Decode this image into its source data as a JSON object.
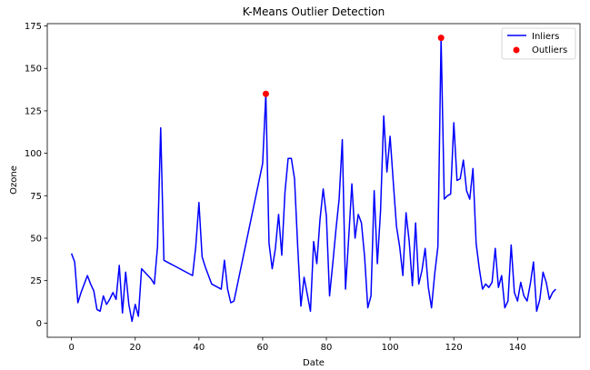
{
  "chart_data": {
    "type": "line",
    "title": "K-Means Outlier Detection",
    "xlabel": "Date",
    "ylabel": "Ozone",
    "xlim": [
      -7.6,
      159.6
    ],
    "ylim": [
      -8.35,
      176.35
    ],
    "xticks": [
      0,
      20,
      40,
      60,
      80,
      100,
      120,
      140
    ],
    "yticks": [
      0,
      25,
      50,
      75,
      100,
      125,
      150,
      175
    ],
    "grid": false,
    "legend_position": "upper right",
    "series": [
      {
        "name": "Inliers",
        "kind": "line",
        "color": "#0000ff",
        "x": [
          0,
          1,
          2,
          3,
          4,
          5,
          6,
          7,
          8,
          9,
          10,
          11,
          12,
          13,
          14,
          15,
          16,
          17,
          18,
          19,
          20,
          21,
          22,
          23,
          24,
          25,
          26,
          27,
          28,
          29,
          30,
          31,
          32,
          33,
          34,
          35,
          36,
          37,
          38,
          39,
          40,
          41,
          42,
          43,
          44,
          45,
          46,
          47,
          48,
          49,
          50,
          51,
          52,
          53,
          54,
          55,
          56,
          57,
          58,
          59,
          60,
          61,
          62,
          63,
          64,
          65,
          66,
          67,
          68,
          69,
          70,
          71,
          72,
          73,
          74,
          75,
          76,
          77,
          78,
          79,
          80,
          81,
          82,
          83,
          84,
          85,
          86,
          87,
          88,
          89,
          90,
          91,
          92,
          93,
          94,
          95,
          96,
          97,
          98,
          99,
          100,
          101,
          102,
          103,
          104,
          105,
          106,
          107,
          108,
          109,
          110,
          111,
          112,
          113,
          114,
          115,
          116,
          117,
          118,
          119,
          120,
          121,
          122,
          123,
          124,
          125,
          126,
          127,
          128,
          129,
          130,
          131,
          132,
          133,
          134,
          135,
          136,
          137,
          138,
          139,
          140,
          141,
          142,
          143,
          144,
          145,
          146,
          147,
          148,
          149,
          150,
          151,
          152
        ],
        "y": [
          41,
          36,
          12,
          18,
          23,
          28,
          23,
          19,
          8,
          7,
          16,
          11,
          14,
          18,
          14,
          34,
          6,
          30,
          11,
          1,
          11,
          4,
          32,
          30,
          28,
          26,
          23,
          45,
          115,
          37,
          36,
          35,
          34,
          33,
          32,
          31,
          30,
          29,
          28,
          45,
          71,
          39,
          33,
          28,
          23,
          22,
          21,
          20,
          37,
          20,
          12,
          13,
          22,
          31,
          40,
          49,
          58,
          67,
          76,
          85,
          94,
          135,
          47,
          32,
          44,
          64,
          40,
          77,
          97,
          97,
          85,
          45,
          10,
          27,
          17,
          7,
          48,
          35,
          61,
          79,
          63,
          16,
          35,
          55,
          73,
          108,
          20,
          50,
          82,
          50,
          64,
          59,
          39,
          9,
          16,
          78,
          35,
          66,
          122,
          89,
          110,
          83,
          57,
          45,
          28,
          65,
          48,
          22,
          59,
          23,
          31,
          44,
          21,
          9,
          29,
          45,
          168,
          73,
          75,
          76,
          118,
          84,
          85,
          96,
          78,
          73,
          91,
          47,
          32,
          20,
          23,
          21,
          24,
          44,
          21,
          28,
          9,
          13,
          46,
          18,
          13,
          24,
          16,
          13,
          23,
          36,
          7,
          14,
          30,
          24,
          14,
          18,
          20
        ]
      },
      {
        "name": "Outliers",
        "kind": "scatter",
        "color": "#ff0000",
        "x": [
          61,
          116
        ],
        "y": [
          135,
          168
        ]
      }
    ]
  }
}
